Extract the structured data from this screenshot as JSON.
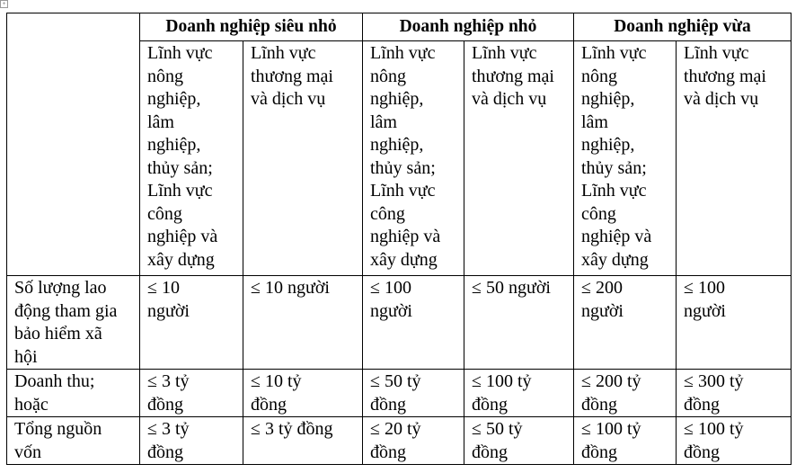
{
  "groups": [
    "Doanh nghiệp siêu nhỏ",
    "Doanh nghiệp nhỏ",
    "Doanh nghiệp vừa"
  ],
  "sectors": [
    "Lĩnh vực\nnông\nnghiệp,\nlâm\nnghiệp,\nthủy sản;\nLĩnh vực\ncông\nnghiệp và\nxây dựng",
    "Lĩnh vực\nthương mại\nvà dịch vụ",
    "Lĩnh vực\nnông\nnghiệp,\nlâm\nnghiệp,\nthủy sản;\nLĩnh vực\ncông\nnghiệp và\nxây dựng",
    "Lĩnh vực\nthương mại\nvà dịch vụ",
    "Lĩnh vực\nnông\nnghiệp,\nlâm\nnghiệp,\nthủy sản;\nLĩnh vực\ncông\nnghiệp và\nxây dựng",
    "Lĩnh vực\nthương mại\nvà dịch vụ"
  ],
  "rows": [
    {
      "label": "Số lượng lao\nđộng tham gia\nbảo hiểm xã\nhội",
      "cells": [
        "≤ 10\nngười",
        "≤ 10 người",
        "≤ 100\nngười",
        "≤ 50 người",
        "≤ 200\nngười",
        "≤ 100\nngười"
      ]
    },
    {
      "label": "Doanh thu;\nhoặc",
      "cells": [
        "≤ 3 tỷ\nđồng",
        "≤ 10 tỷ\nđồng",
        "≤ 50 tỷ\nđồng",
        "≤ 100 tỷ\nđồng",
        "≤ 200 tỷ\nđồng",
        "≤ 300 tỷ\nđồng"
      ]
    },
    {
      "label": "Tổng nguồn\nvốn",
      "cells": [
        "≤ 3 tỷ\nđồng",
        "≤ 3 tỷ đồng",
        "≤ 20 tỷ\nđồng",
        "≤ 50 tỷ\nđồng",
        "≤ 100 tỷ\nđồng",
        "≤ 100 tỷ\nđồng"
      ]
    }
  ]
}
